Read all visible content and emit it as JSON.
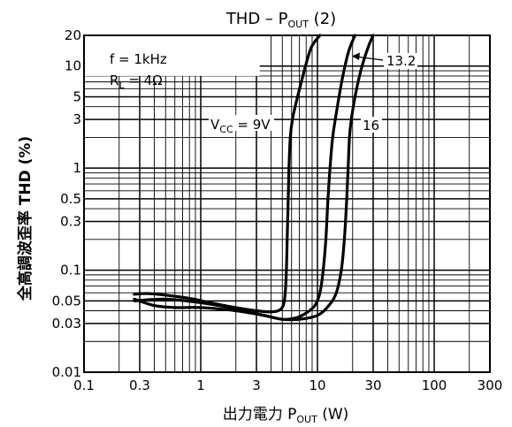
{
  "chart_data": {
    "type": "line",
    "title": {
      "prefix": "THD  –  P",
      "sub": "OUT",
      "suffix": " (2)"
    },
    "xlabel": {
      "prefix": "出力電力   P",
      "sub": "OUT",
      "suffix": "   (W)"
    },
    "ylabel": "全高調波歪率   THD    (%)",
    "x_scale": "log",
    "y_scale": "log",
    "xlim": [
      0.1,
      300
    ],
    "ylim": [
      0.01,
      20
    ],
    "grid": true,
    "x_ticks": [
      {
        "v": 0.1,
        "label": "0.1"
      },
      {
        "v": 0.3,
        "label": "0.3"
      },
      {
        "v": 1,
        "label": "1"
      },
      {
        "v": 3,
        "label": "3"
      },
      {
        "v": 10,
        "label": "10"
      },
      {
        "v": 30,
        "label": "30"
      },
      {
        "v": 100,
        "label": "100"
      },
      {
        "v": 300,
        "label": "300"
      }
    ],
    "y_ticks": [
      {
        "v": 0.01,
        "label": "0.01"
      },
      {
        "v": 0.03,
        "label": "0.03"
      },
      {
        "v": 0.05,
        "label": "0.05"
      },
      {
        "v": 0.1,
        "label": "0.1"
      },
      {
        "v": 0.3,
        "label": "0.3"
      },
      {
        "v": 0.5,
        "label": "0.5"
      },
      {
        "v": 1,
        "label": "1"
      },
      {
        "v": 3,
        "label": "3"
      },
      {
        "v": 5,
        "label": "5"
      },
      {
        "v": 10,
        "label": "10"
      },
      {
        "v": 20,
        "label": "20"
      }
    ],
    "conditions": [
      {
        "prefix": "f = 1kHz",
        "sub": "",
        "suffix": ""
      },
      {
        "prefix": "R",
        "sub": "L",
        "suffix": " = 4Ω"
      }
    ],
    "series": [
      {
        "label": {
          "prefix": "V",
          "sub": "CC",
          "suffix": " = 9V"
        },
        "x": [
          0.27,
          0.35,
          0.5,
          0.8,
          1.2,
          2.0,
          3.0,
          4.0,
          4.8,
          5.2,
          5.4,
          5.55,
          5.7,
          5.85,
          6.1,
          6.6,
          7.5,
          8.8,
          10.5
        ],
        "y": [
          0.058,
          0.059,
          0.057,
          0.053,
          0.048,
          0.043,
          0.04,
          0.039,
          0.041,
          0.05,
          0.09,
          0.3,
          1.0,
          2.0,
          3.0,
          4.5,
          8.0,
          15.0,
          20.0
        ]
      },
      {
        "label": {
          "prefix": "13.2",
          "sub": "",
          "suffix": ""
        },
        "x": [
          0.27,
          0.4,
          0.6,
          1.0,
          2.0,
          3.5,
          5.0,
          6.5,
          8.0,
          9.5,
          10.5,
          11.2,
          11.8,
          12.3,
          12.8,
          13.5,
          14.8,
          16.5,
          18.5,
          21.0
        ],
        "y": [
          0.052,
          0.045,
          0.043,
          0.043,
          0.04,
          0.036,
          0.033,
          0.034,
          0.038,
          0.045,
          0.06,
          0.1,
          0.2,
          0.5,
          1.0,
          2.0,
          4.0,
          8.0,
          14.0,
          20.0
        ]
      },
      {
        "label": {
          "prefix": "16",
          "sub": "",
          "suffix": ""
        },
        "x": [
          0.27,
          0.5,
          1.0,
          2.0,
          3.5,
          5.0,
          7.0,
          10.0,
          12.5,
          14.5,
          16.0,
          17.0,
          17.8,
          18.3,
          18.8,
          19.5,
          21.0,
          23.5,
          27.0,
          30.0
        ],
        "y": [
          0.05,
          0.052,
          0.048,
          0.042,
          0.036,
          0.033,
          0.033,
          0.036,
          0.045,
          0.06,
          0.1,
          0.2,
          0.5,
          1.0,
          2.0,
          3.0,
          5.0,
          9.0,
          15.0,
          20.0
        ]
      }
    ]
  }
}
